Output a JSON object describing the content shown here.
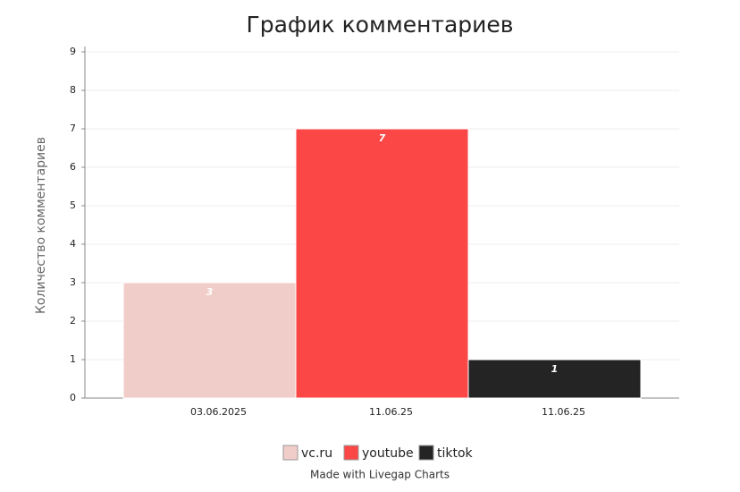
{
  "chart_data": {
    "type": "bar",
    "title": "График комментариев",
    "y_label": "Количество комментариев",
    "categories": [
      "03.06.2025",
      "11.06.25",
      "11.06.25"
    ],
    "series": [
      {
        "name": "vc.ru",
        "color": "#f0cdc8",
        "values": [
          3,
          null,
          null
        ]
      },
      {
        "name": "youtube",
        "color": "#fc4747",
        "values": [
          null,
          7,
          null
        ]
      },
      {
        "name": "tiktok",
        "color": "#242424",
        "values": [
          null,
          null,
          1
        ]
      }
    ],
    "ylim": [
      0,
      9
    ],
    "yticks": [
      0,
      1,
      2,
      3,
      4,
      5,
      6,
      7,
      8,
      9
    ],
    "grid": true,
    "legend": "bottom",
    "footer": "Made with Livegap Charts"
  }
}
